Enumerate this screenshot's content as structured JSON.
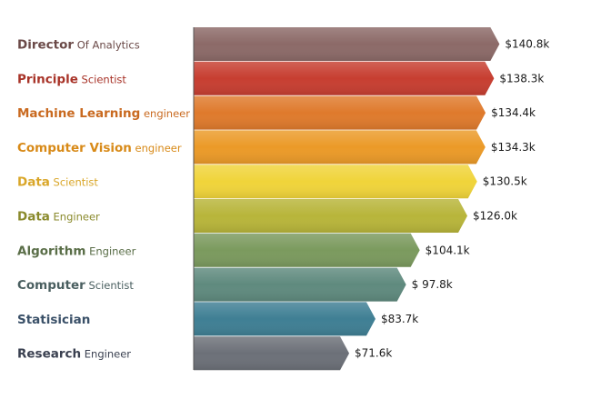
{
  "chart_data": {
    "type": "bar",
    "orientation": "horizontal",
    "categories": [
      {
        "bold": "Director",
        "rest": " Of Analytics",
        "color": "#8c6a68",
        "label_color": "#6b4a48"
      },
      {
        "bold": "Principle",
        "rest": " Scientist",
        "color": "#c73e31",
        "label_color": "#a83328"
      },
      {
        "bold": "Machine Learning",
        "rest": " engineer",
        "color": "#df7a2c",
        "label_color": "#c96a20"
      },
      {
        "bold": "Computer Vision",
        "rest": " engineer",
        "color": "#eb9a28",
        "label_color": "#d88a18"
      },
      {
        "bold": "Data",
        "rest": " Scientist",
        "color": "#f0d43a",
        "label_color": "#d9a628"
      },
      {
        "bold": "Data",
        "rest": " Engineer",
        "color": "#b8b53a",
        "label_color": "#8a8a2c"
      },
      {
        "bold": "Algorithm",
        "rest": " Engineer",
        "color": "#7b9a5e",
        "label_color": "#5a6e48"
      },
      {
        "bold": "Computer",
        "rest": " Scientist",
        "color": "#5f8a7e",
        "label_color": "#4a5f60"
      },
      {
        "bold": "Statisician",
        "rest": "",
        "color": "#3f7f94",
        "label_color": "#3a5068"
      },
      {
        "bold": "Research",
        "rest": " Engineer",
        "color": "#6c7078",
        "label_color": "#3a4050"
      }
    ],
    "values": [
      140.8,
      138.3,
      134.4,
      134.3,
      130.5,
      126.0,
      104.1,
      97.8,
      83.7,
      71.6
    ],
    "value_labels": [
      "$140.8k",
      "$138.3k",
      "$134.4k",
      "$134.3k",
      "$130.5k",
      "$126.0k",
      "$104.1k",
      "$ 97.8k",
      "$83.7k",
      "$71.6k"
    ],
    "title": "",
    "xlabel": "",
    "ylabel": "",
    "xlim": [
      0,
      162
    ],
    "grid": false,
    "legend": "none"
  }
}
